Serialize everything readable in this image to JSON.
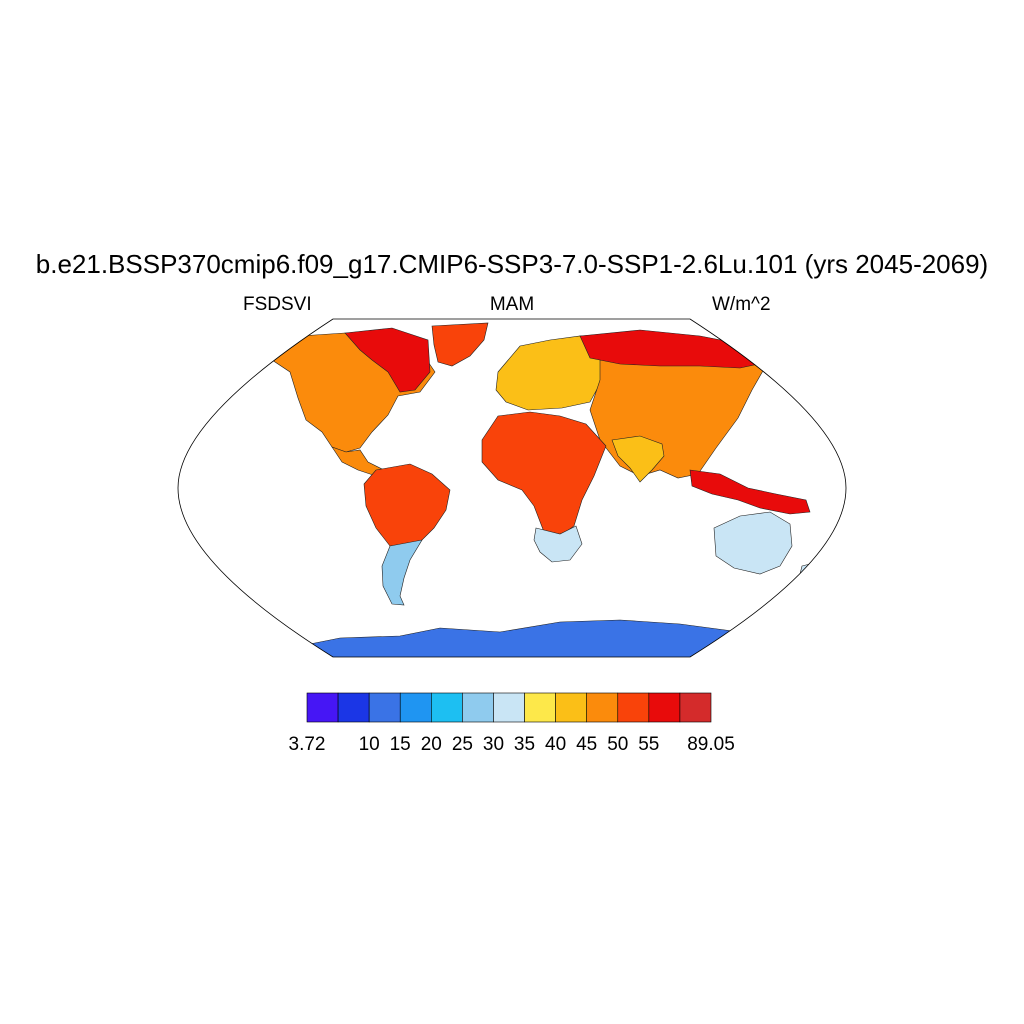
{
  "title": "b.e21.BSSP370cmip6.f09_g17.CMIP6-SSP3-7.0-SSP1-2.6Lu.101 (yrs 2045-2069)",
  "left_label": "FSDSVI",
  "center_label": "MAM",
  "right_label": "W/m^2",
  "map": {
    "projection": "robinson",
    "regions": [
      {
        "name": "north-america",
        "value_level": 45
      },
      {
        "name": "canadian-arctic",
        "value_level": 55
      },
      {
        "name": "greenland",
        "value_level": 50
      },
      {
        "name": "central-america",
        "value_level": 45
      },
      {
        "name": "south-america",
        "value_level": 50
      },
      {
        "name": "patagonia",
        "value_level": 25
      },
      {
        "name": "europe",
        "value_level": 40
      },
      {
        "name": "africa",
        "value_level": 50
      },
      {
        "name": "southern-africa",
        "value_level": 30
      },
      {
        "name": "asia",
        "value_level": 45
      },
      {
        "name": "siberia",
        "value_level": 55
      },
      {
        "name": "india",
        "value_level": 40
      },
      {
        "name": "southeast-asia",
        "value_level": 55
      },
      {
        "name": "australia",
        "value_level": 30
      },
      {
        "name": "new-zealand",
        "value_level": 30
      },
      {
        "name": "antarctica",
        "value_level": 10
      }
    ]
  },
  "colorbar": {
    "colors": [
      "#4616f5",
      "#1b36e6",
      "#3a73e6",
      "#1f95f2",
      "#1dbff2",
      "#8fcbee",
      "#c9e5f5",
      "#fde84a",
      "#fbbf17",
      "#fb8b0c",
      "#f9430a",
      "#e80b0b",
      "#d42b2b"
    ],
    "labels": [
      "3.72",
      "10",
      "15",
      "20",
      "25",
      "30",
      "35",
      "40",
      "45",
      "50",
      "55",
      "89.05"
    ]
  }
}
